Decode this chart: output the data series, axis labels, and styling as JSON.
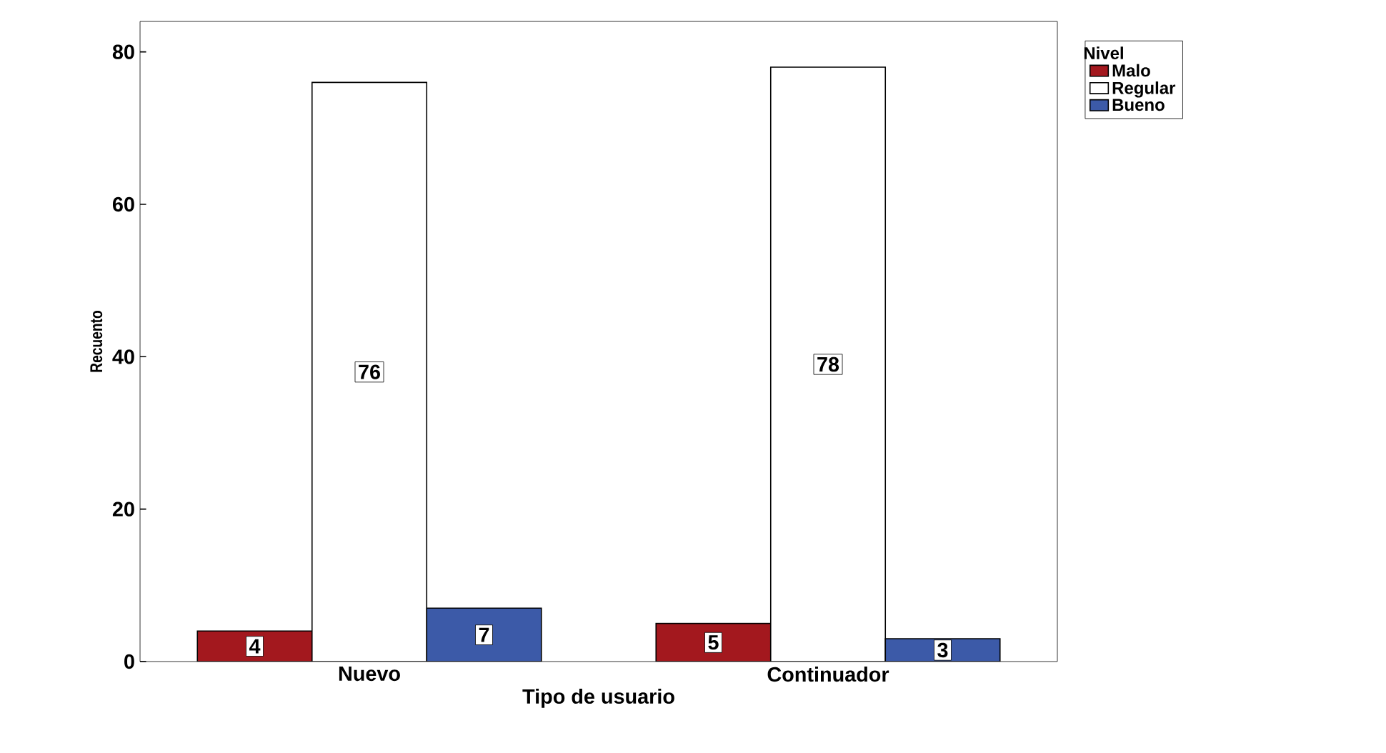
{
  "chart_data": {
    "type": "bar",
    "xlabel": "Tipo de usuario",
    "ylabel": "Recuento",
    "legend_title": "Nivel",
    "categories": [
      "Nuevo",
      "Continuador"
    ],
    "series": [
      {
        "name": "Malo",
        "color": "#a3181e",
        "values": [
          4,
          5
        ]
      },
      {
        "name": "Regular",
        "color": "#ffffff",
        "values": [
          76,
          78
        ]
      },
      {
        "name": "Bueno",
        "color": "#3c5aa8",
        "values": [
          7,
          3
        ]
      }
    ],
    "ylim": [
      0,
      84
    ],
    "yticks": [
      0,
      20,
      40,
      60,
      80
    ],
    "grid": false,
    "legend": "top right",
    "data_labels": true
  }
}
